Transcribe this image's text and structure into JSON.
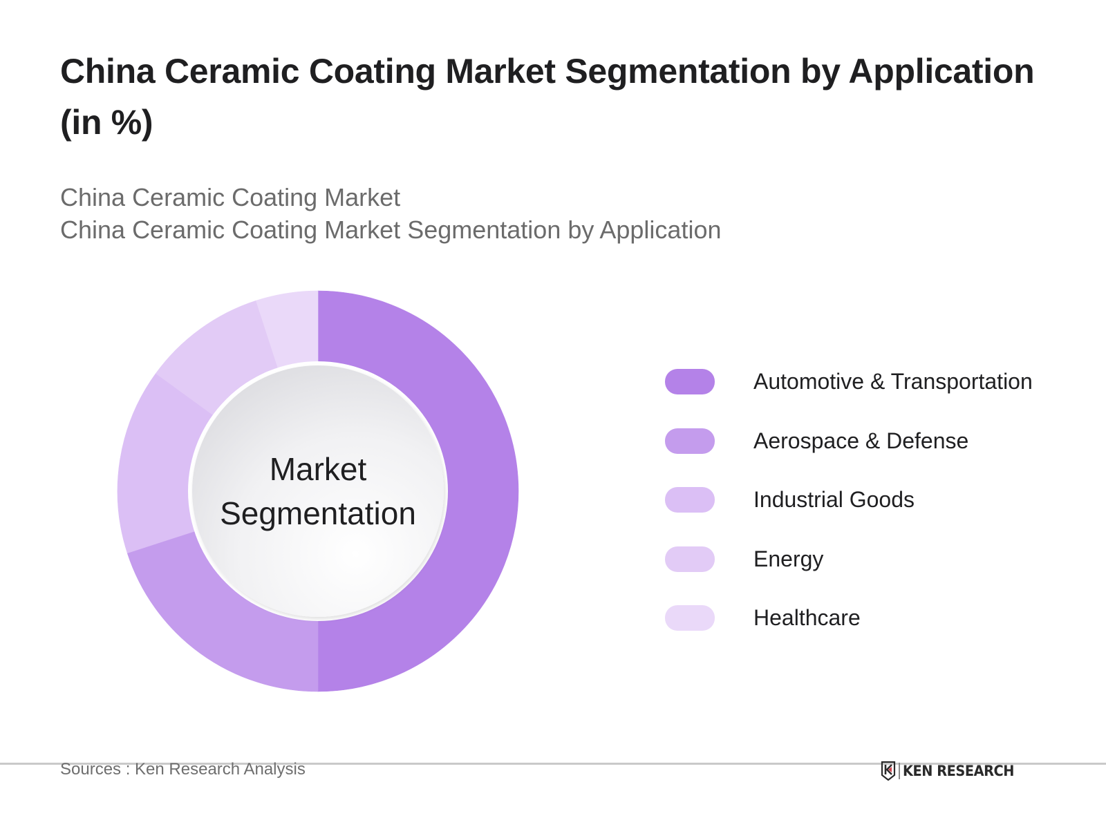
{
  "header": {
    "title": "China Ceramic Coating Market Segmentation by Application (in %)",
    "subtitle_line1": "China Ceramic Coating Market",
    "subtitle_line2": "China Ceramic Coating Market Segmentation by Application"
  },
  "chart": {
    "center_label_line1": "Market",
    "center_label_line2": "Segmentation"
  },
  "legend": {
    "items": [
      {
        "label": "Automotive & Transportation",
        "color": "#b482e8"
      },
      {
        "label": "Aerospace & Defense",
        "color": "#c49ced"
      },
      {
        "label": "Industrial Goods",
        "color": "#dbbff5"
      },
      {
        "label": "Energy",
        "color": "#e2cbf6"
      },
      {
        "label": "Healthcare",
        "color": "#ead9f9"
      }
    ]
  },
  "footer": {
    "source": "Sources : Ken Research Analysis",
    "logo_text": "KEN RESEARCH",
    "logo_icon": "ken-research-shield-k-icon"
  },
  "chart_data": {
    "type": "pie",
    "variant": "donut",
    "title": "China Ceramic Coating Market Segmentation by Application (in %)",
    "subtitle": "China Ceramic Coating Market Segmentation by Application",
    "center_text": "Market Segmentation",
    "categories": [
      "Automotive & Transportation",
      "Aerospace & Defense",
      "Industrial Goods",
      "Energy",
      "Healthcare"
    ],
    "values": [
      50,
      20,
      15,
      10,
      5
    ],
    "unit": "%",
    "colors": [
      "#b482e8",
      "#c49ced",
      "#dbbff5",
      "#e2cbf6",
      "#ead9f9"
    ],
    "start_angle": "12 o'clock",
    "direction": "clockwise",
    "data_labels": false,
    "legend_position": "right"
  }
}
